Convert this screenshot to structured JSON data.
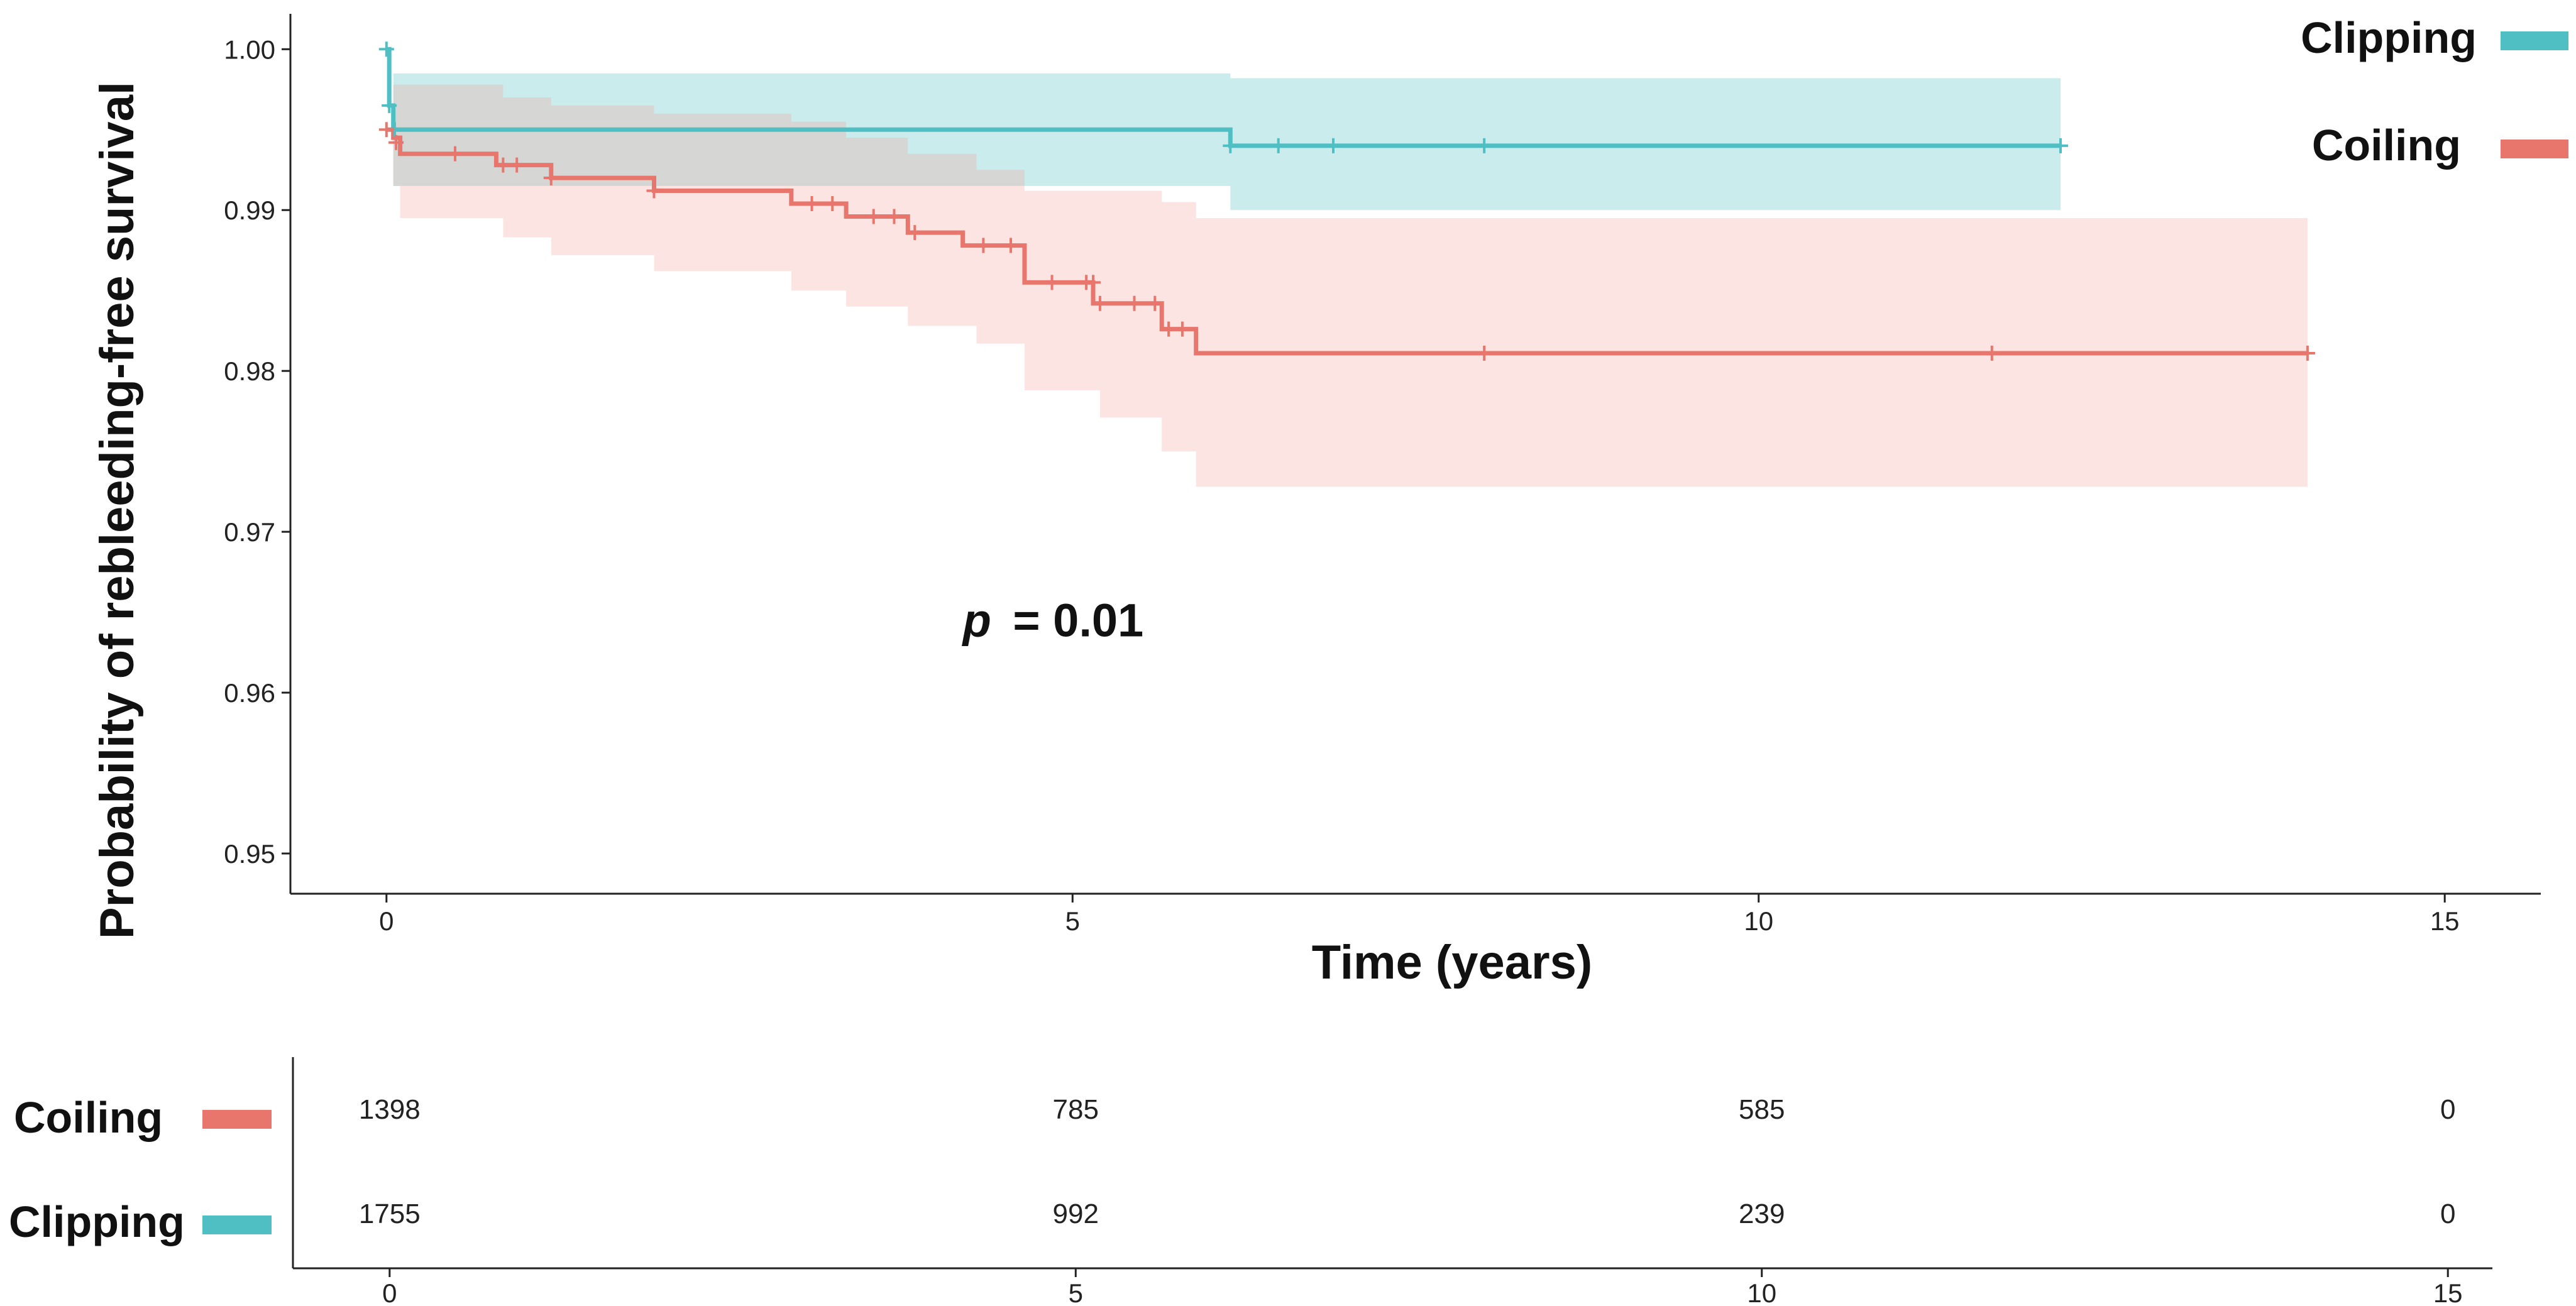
{
  "chart_data": {
    "type": "line",
    "subtype": "kaplan-meier",
    "title": "",
    "xlabel": "Time (years)",
    "ylabel": "Probability of rebleeding-free survival",
    "xlim": [
      -0.7,
      15.7
    ],
    "ylim": [
      0.9475,
      1.0022
    ],
    "x_ticks": [
      0,
      5,
      10,
      15
    ],
    "y_ticks": [
      0.95,
      0.96,
      0.97,
      0.98,
      0.99,
      1.0
    ],
    "y_tick_labels": [
      "0.95",
      "0.96",
      "0.97",
      "0.98",
      "0.99",
      "1.00"
    ],
    "legend_position": "top-right",
    "annotation": {
      "p_symbol": "p",
      "p_text": "= 0.01",
      "x": 4.2,
      "y": 0.9635
    },
    "series": [
      {
        "name": "Clipping",
        "color": "#4FBFC4",
        "band_color": "#4FBFC4",
        "steps": [
          [
            0,
            1.0
          ],
          [
            0.02,
            0.9965
          ],
          [
            0.05,
            0.995
          ],
          [
            6.15,
            0.994
          ],
          [
            12.2,
            0.994
          ]
        ],
        "ci": [
          [
            0,
            1.0,
            1.0
          ],
          [
            0.05,
            0.9915,
            0.9985
          ],
          [
            6.15,
            0.99,
            0.9982
          ],
          [
            12.2,
            0.99,
            0.9982
          ]
        ],
        "censored": [
          [
            0.0,
            1.0
          ],
          [
            0.02,
            0.9965
          ],
          [
            0.06,
            0.995
          ],
          [
            6.15,
            0.994
          ],
          [
            6.5,
            0.994
          ],
          [
            6.9,
            0.994
          ],
          [
            8.0,
            0.994
          ],
          [
            12.2,
            0.994
          ]
        ]
      },
      {
        "name": "Coiling",
        "color": "#E8766C",
        "band_color": "#F2A59E",
        "steps": [
          [
            0,
            0.995
          ],
          [
            0.05,
            0.9945
          ],
          [
            0.1,
            0.9935
          ],
          [
            0.8,
            0.9928
          ],
          [
            1.2,
            0.992
          ],
          [
            1.95,
            0.9912
          ],
          [
            2.95,
            0.9904
          ],
          [
            3.35,
            0.9896
          ],
          [
            3.8,
            0.9886
          ],
          [
            4.2,
            0.9878
          ],
          [
            4.65,
            0.9855
          ],
          [
            5.15,
            0.9842
          ],
          [
            5.65,
            0.9826
          ],
          [
            5.9,
            0.9811
          ],
          [
            14.0,
            0.9811
          ]
        ],
        "ci": [
          [
            0,
            0.995,
            0.995
          ],
          [
            0.05,
            0.9915,
            0.9978
          ],
          [
            0.1,
            0.9895,
            0.9978
          ],
          [
            0.85,
            0.9883,
            0.997
          ],
          [
            1.2,
            0.9872,
            0.9965
          ],
          [
            1.95,
            0.9862,
            0.996
          ],
          [
            2.95,
            0.985,
            0.9955
          ],
          [
            3.35,
            0.984,
            0.9945
          ],
          [
            3.8,
            0.9828,
            0.9935
          ],
          [
            4.3,
            0.9817,
            0.9925
          ],
          [
            4.65,
            0.9788,
            0.9912
          ],
          [
            5.2,
            0.9771,
            0.9912
          ],
          [
            5.65,
            0.975,
            0.9905
          ],
          [
            5.9,
            0.9728,
            0.9895
          ],
          [
            14.0,
            0.9728,
            0.9895
          ]
        ],
        "censored": [
          [
            0.0,
            0.995
          ],
          [
            0.07,
            0.9942
          ],
          [
            0.5,
            0.9935
          ],
          [
            0.85,
            0.9928
          ],
          [
            0.95,
            0.9928
          ],
          [
            1.2,
            0.992
          ],
          [
            1.95,
            0.9912
          ],
          [
            3.1,
            0.9904
          ],
          [
            3.25,
            0.9904
          ],
          [
            3.55,
            0.9896
          ],
          [
            3.7,
            0.9896
          ],
          [
            3.85,
            0.9886
          ],
          [
            4.35,
            0.9878
          ],
          [
            4.55,
            0.9878
          ],
          [
            4.85,
            0.9855
          ],
          [
            5.1,
            0.9855
          ],
          [
            5.15,
            0.9855
          ],
          [
            5.2,
            0.9842
          ],
          [
            5.45,
            0.9842
          ],
          [
            5.6,
            0.9842
          ],
          [
            5.7,
            0.9826
          ],
          [
            5.8,
            0.9826
          ],
          [
            8.0,
            0.9811
          ],
          [
            11.7,
            0.9811
          ],
          [
            14.0,
            0.9811
          ]
        ]
      }
    ],
    "risk_table": {
      "x_ticks": [
        0,
        5,
        10,
        15
      ],
      "rows": [
        {
          "name": "Coiling",
          "color": "#E8766C",
          "counts": [
            "1398",
            "785",
            "585",
            "0"
          ]
        },
        {
          "name": "Clipping",
          "color": "#4FBFC4",
          "counts": [
            "1755",
            "992",
            "239",
            "0"
          ]
        }
      ]
    }
  }
}
